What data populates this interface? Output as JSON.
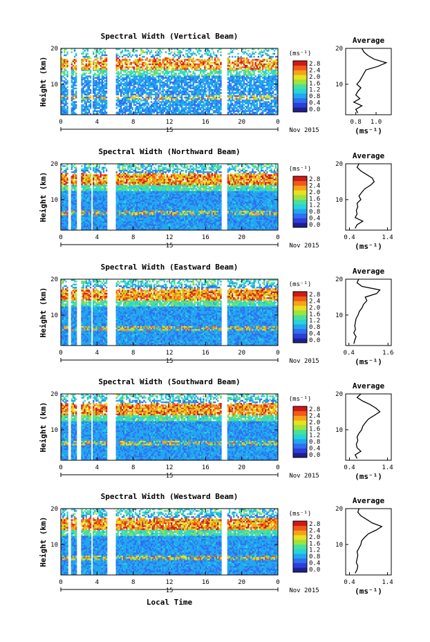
{
  "chart_data": [
    {
      "type": "heatmap",
      "title": "Spectral Width (Vertical Beam)",
      "xlabel": "",
      "ylabel": "Height (km)",
      "x_ticks": [
        "0",
        "4",
        "8",
        "12",
        "16",
        "20",
        "0"
      ],
      "y_ticks": [
        "20",
        "10"
      ],
      "xlim": [
        0,
        24
      ],
      "ylim": [
        1.5,
        20
      ],
      "date_label": "Nov 2015",
      "day_label": "15",
      "colorbar": {
        "unit": "(ms⁻¹)",
        "ticks": [
          "2.8",
          "2.4",
          "2.0",
          "1.6",
          "1.2",
          "0.8",
          "0.4",
          "0.0"
        ]
      },
      "data_gaps_hours": [
        [
          0.8,
          1.1
        ],
        [
          1.7,
          2.3
        ],
        [
          3.4,
          3.5
        ],
        [
          5.1,
          6.0
        ],
        [
          17.7,
          18.4
        ]
      ],
      "average_profile": {
        "title": "Average",
        "xlabel": "(ms⁻¹)",
        "x_ticks": [
          "0.8",
          "1.0"
        ],
        "xlim": [
          0.7,
          1.15
        ],
        "heights_km": [
          2,
          3,
          4,
          5,
          6,
          7,
          8,
          9,
          10,
          11,
          12,
          13,
          14,
          15,
          16,
          17,
          18,
          19,
          20
        ],
        "values": [
          0.82,
          0.8,
          0.86,
          0.78,
          0.84,
          0.8,
          0.82,
          0.85,
          0.81,
          0.84,
          0.86,
          0.88,
          0.9,
          1.02,
          1.1,
          0.98,
          0.92,
          0.88,
          0.86
        ]
      }
    },
    {
      "type": "heatmap",
      "title": "Spectral Width (Northward Beam)",
      "xlabel": "",
      "ylabel": "Height (km)",
      "x_ticks": [
        "0",
        "4",
        "8",
        "12",
        "16",
        "20",
        "0"
      ],
      "y_ticks": [
        "20",
        "10"
      ],
      "xlim": [
        0,
        24
      ],
      "ylim": [
        1.5,
        20
      ],
      "date_label": "Nov 2015",
      "day_label": "15",
      "colorbar": {
        "unit": "(ms⁻¹)",
        "ticks": [
          "2.8",
          "2.4",
          "2.0",
          "1.6",
          "1.2",
          "0.8",
          "0.4",
          "0.0"
        ]
      },
      "data_gaps_hours": [
        [
          0.8,
          1.1
        ],
        [
          1.7,
          2.3
        ],
        [
          3.4,
          3.5
        ],
        [
          5.1,
          6.0
        ],
        [
          17.7,
          18.4
        ]
      ],
      "average_profile": {
        "title": "Average",
        "xlabel": "(ms⁻¹)",
        "x_ticks": [
          "0.4",
          "1.4"
        ],
        "xlim": [
          0.3,
          1.5
        ],
        "heights_km": [
          2,
          3,
          4,
          5,
          6,
          7,
          8,
          9,
          10,
          11,
          12,
          13,
          14,
          15,
          16,
          17,
          18,
          19,
          20
        ],
        "values": [
          0.55,
          0.6,
          0.75,
          0.55,
          0.6,
          0.58,
          0.62,
          0.6,
          0.7,
          0.65,
          0.72,
          0.8,
          0.95,
          1.05,
          1.0,
          0.85,
          0.7,
          0.6,
          0.65
        ]
      }
    },
    {
      "type": "heatmap",
      "title": "Spectral Width (Eastward Beam)",
      "xlabel": "",
      "ylabel": "Height (km)",
      "x_ticks": [
        "0",
        "4",
        "8",
        "12",
        "16",
        "20",
        "0"
      ],
      "y_ticks": [
        "20",
        "10"
      ],
      "xlim": [
        0,
        24
      ],
      "ylim": [
        1.5,
        20
      ],
      "date_label": "Nov 2015",
      "day_label": "15",
      "colorbar": {
        "unit": "(ms⁻¹)",
        "ticks": [
          "2.8",
          "2.4",
          "2.0",
          "1.6",
          "1.2",
          "0.8",
          "0.4",
          "0.0"
        ]
      },
      "data_gaps_hours": [
        [
          0.8,
          1.1
        ],
        [
          1.7,
          2.3
        ],
        [
          3.4,
          3.5
        ],
        [
          5.1,
          6.0
        ],
        [
          17.7,
          18.4
        ]
      ],
      "average_profile": {
        "title": "Average",
        "xlabel": "(ms⁻¹)",
        "x_ticks": [
          "0.4",
          "1.6"
        ],
        "xlim": [
          0.3,
          1.7
        ],
        "heights_km": [
          2,
          3,
          4,
          5,
          6,
          7,
          8,
          9,
          10,
          11,
          12,
          13,
          14,
          15,
          16,
          17,
          18,
          19,
          20
        ],
        "values": [
          0.55,
          0.58,
          0.62,
          0.55,
          0.6,
          0.58,
          0.6,
          0.62,
          0.68,
          0.72,
          0.8,
          0.85,
          0.95,
          0.9,
          1.25,
          1.35,
          0.8,
          0.65,
          0.7
        ]
      }
    },
    {
      "type": "heatmap",
      "title": "Spectral Width (Southward Beam)",
      "xlabel": "",
      "ylabel": "Height (km)",
      "x_ticks": [
        "0",
        "4",
        "8",
        "12",
        "16",
        "20",
        "0"
      ],
      "y_ticks": [
        "20",
        "10"
      ],
      "xlim": [
        0,
        24
      ],
      "ylim": [
        1.5,
        20
      ],
      "date_label": "Nov 2015",
      "day_label": "15",
      "colorbar": {
        "unit": "(ms⁻¹)",
        "ticks": [
          "2.8",
          "2.4",
          "2.0",
          "1.6",
          "1.2",
          "0.8",
          "0.4",
          "0.0"
        ]
      },
      "data_gaps_hours": [
        [
          0.8,
          1.1
        ],
        [
          1.7,
          2.3
        ],
        [
          3.4,
          3.5
        ],
        [
          5.1,
          6.0
        ],
        [
          17.7,
          18.4
        ]
      ],
      "average_profile": {
        "title": "Average",
        "xlabel": "(ms⁻¹)",
        "x_ticks": [
          "0.4",
          "1.4"
        ],
        "xlim": [
          0.3,
          1.5
        ],
        "heights_km": [
          2,
          3,
          4,
          5,
          6,
          7,
          8,
          9,
          10,
          11,
          12,
          13,
          14,
          15,
          16,
          17,
          18,
          19,
          20
        ],
        "values": [
          0.6,
          0.55,
          0.7,
          0.6,
          0.58,
          0.62,
          0.6,
          0.65,
          0.72,
          0.75,
          0.82,
          0.9,
          1.05,
          1.2,
          1.1,
          0.95,
          0.75,
          0.6,
          0.7
        ]
      }
    },
    {
      "type": "heatmap",
      "title": "Spectral Width (Westward Beam)",
      "xlabel": "Local Time",
      "ylabel": "Height (km)",
      "x_ticks": [
        "0",
        "4",
        "8",
        "12",
        "16",
        "20",
        "0"
      ],
      "y_ticks": [
        "20",
        "10"
      ],
      "xlim": [
        0,
        24
      ],
      "ylim": [
        1.5,
        20
      ],
      "date_label": "Nov 2015",
      "day_label": "15",
      "colorbar": {
        "unit": "(ms⁻¹)",
        "ticks": [
          "2.8",
          "2.4",
          "2.0",
          "1.6",
          "1.2",
          "0.8",
          "0.4",
          "0.0"
        ]
      },
      "data_gaps_hours": [
        [
          0.8,
          1.1
        ],
        [
          1.7,
          2.3
        ],
        [
          3.4,
          3.5
        ],
        [
          5.1,
          6.0
        ],
        [
          17.7,
          18.4
        ]
      ],
      "average_profile": {
        "title": "Average",
        "xlabel": "(ms⁻¹)",
        "x_ticks": [
          "0.4",
          "1.4"
        ],
        "xlim": [
          0.3,
          1.5
        ],
        "heights_km": [
          2,
          3,
          4,
          5,
          6,
          7,
          8,
          9,
          10,
          11,
          12,
          13,
          14,
          15,
          16,
          17,
          18,
          19,
          20
        ],
        "values": [
          0.55,
          0.6,
          0.62,
          0.58,
          0.6,
          0.62,
          0.6,
          0.65,
          0.7,
          0.72,
          0.8,
          0.9,
          1.1,
          1.25,
          1.0,
          0.85,
          0.7,
          0.62,
          0.65
        ]
      }
    }
  ],
  "colorscale": [
    "#1f1f8f",
    "#2b3fd8",
    "#2f6ff0",
    "#22a6f0",
    "#27d4d8",
    "#4be09a",
    "#9fe33b",
    "#e8e020",
    "#f6a21b",
    "#f05a18",
    "#d01818"
  ]
}
